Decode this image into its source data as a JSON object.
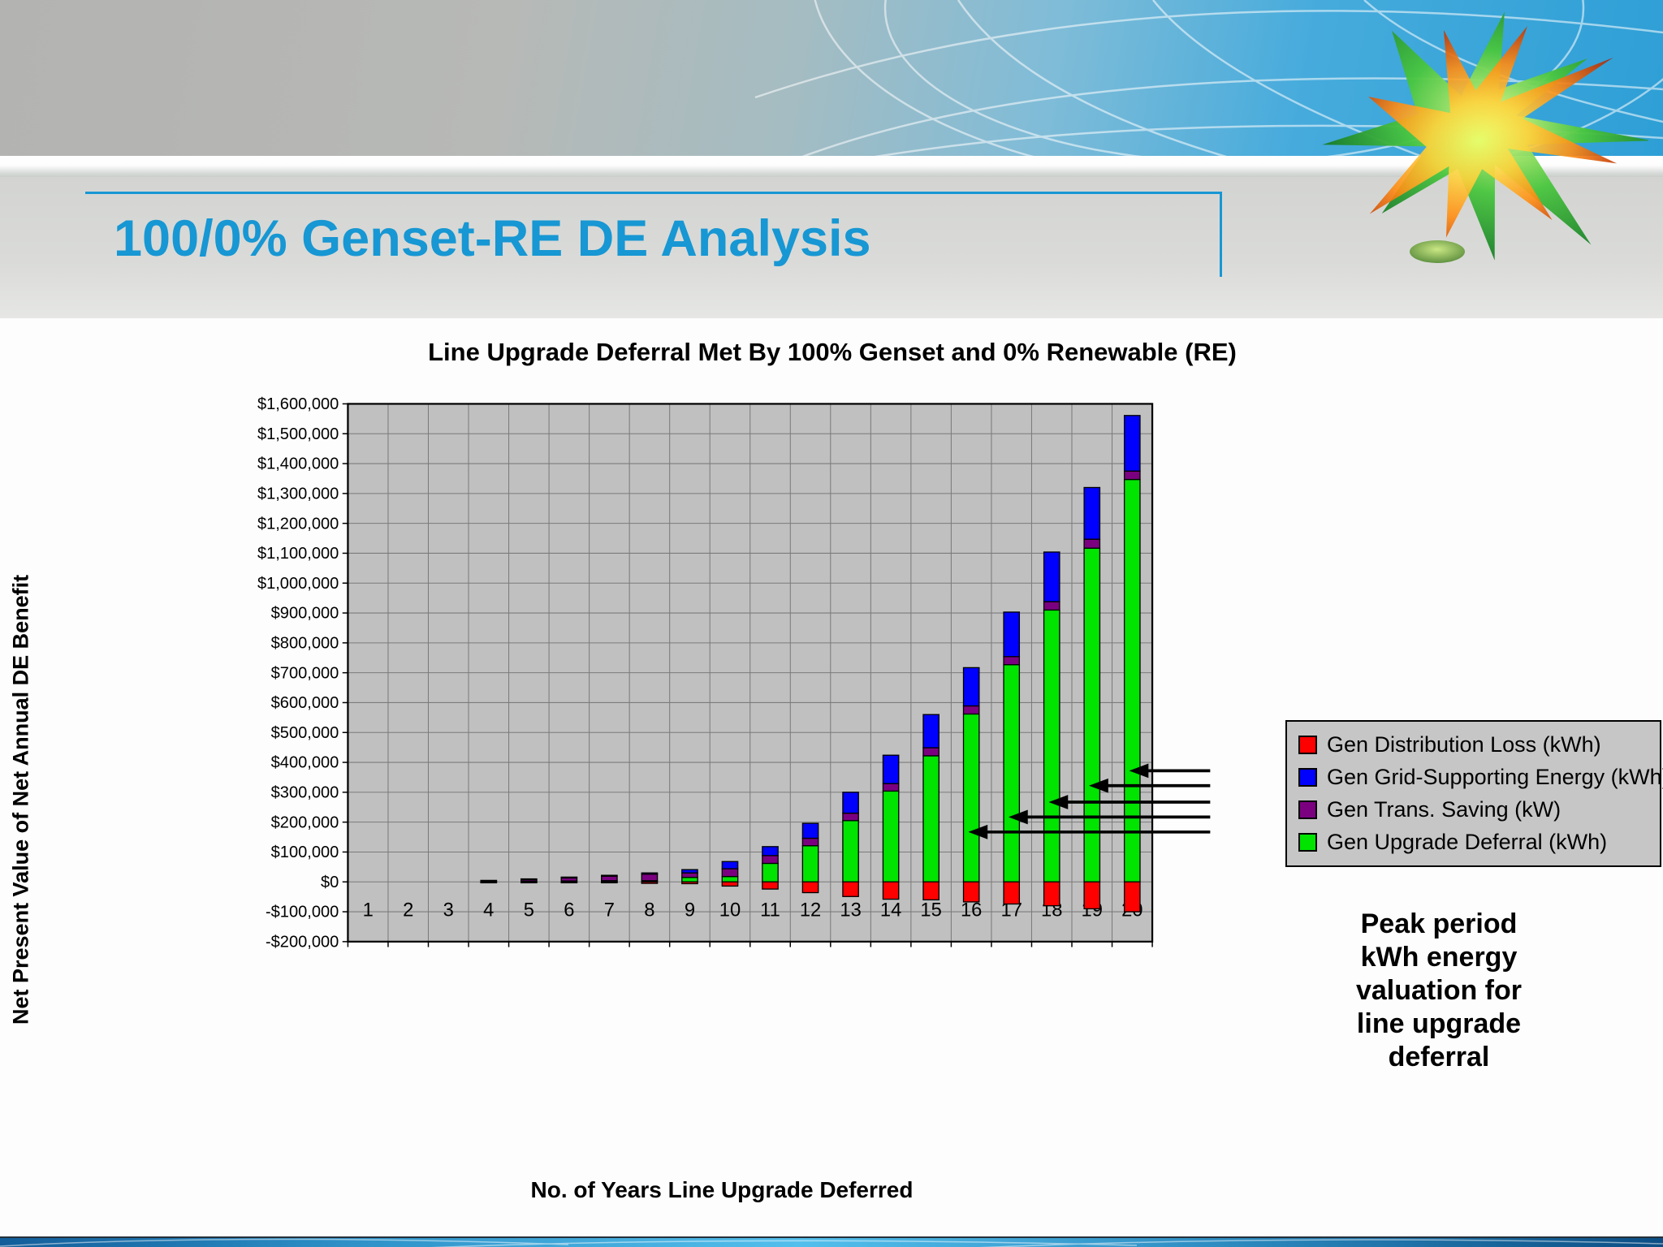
{
  "slide": {
    "title": "100/0% Genset-RE DE Analysis"
  },
  "chart": {
    "title": "Line Upgrade Deferral Met By 100% Genset and 0% Renewable (RE)",
    "x_axis_title": "No. of Years Line Upgrade Deferred",
    "y_axis_title": "Net Present Value of Net Annual DE Benefit"
  },
  "chart_data": {
    "type": "bar",
    "stacked": true,
    "title": "Line Upgrade Deferral Met By 100% Genset and 0% Renewable (RE)",
    "xlabel": "No. of Years Line Upgrade Deferred",
    "ylabel": "Net Present Value of Net Annual DE Benefit",
    "categories": [
      1,
      2,
      3,
      4,
      5,
      6,
      7,
      8,
      9,
      10,
      11,
      12,
      13,
      14,
      15,
      16,
      17,
      18,
      19,
      20
    ],
    "series": [
      {
        "name": "Gen Distribution Loss (kWh)",
        "color": "#FF0000",
        "values": [
          0,
          0,
          0,
          -2000,
          -2000,
          -3000,
          -3000,
          -5000,
          -6000,
          -14000,
          -24000,
          -36000,
          -49000,
          -58000,
          -60000,
          -67000,
          -74000,
          -80000,
          -90000,
          -100000
        ]
      },
      {
        "name": "Gen Grid-Supporting Energy (kWh)",
        "color": "#0000FF",
        "values": [
          0,
          0,
          0,
          1000,
          1000,
          2000,
          3000,
          4000,
          11000,
          24000,
          30000,
          50000,
          70000,
          95000,
          111000,
          128000,
          149000,
          166000,
          173000,
          186000
        ]
      },
      {
        "name": "Gen Trans. Saving (kW)",
        "color": "#7B0080",
        "values": [
          0,
          0,
          0,
          3000,
          7000,
          11000,
          15000,
          22000,
          15000,
          26000,
          26000,
          25000,
          25000,
          25000,
          27000,
          27000,
          27000,
          28000,
          30000,
          28000
        ]
      },
      {
        "name": "Gen Upgrade Deferral (kWh)",
        "color": "#00E400",
        "values": [
          0,
          0,
          0,
          1000,
          2000,
          3000,
          4000,
          4000,
          15000,
          18000,
          62000,
          121000,
          205000,
          304000,
          422000,
          562000,
          727000,
          910000,
          1117000,
          1347000
        ]
      }
    ],
    "ylim": [
      -200000,
      1600000
    ],
    "y_tick_step": 100000,
    "y_ticks": [
      "$1,600,000",
      "$1,500,000",
      "$1,400,000",
      "$1,300,000",
      "$1,200,000",
      "$1,100,000",
      "$1,000,000",
      "$900,000",
      "$800,000",
      "$700,000",
      "$600,000",
      "$500,000",
      "$400,000",
      "$300,000",
      "$200,000",
      "$100,000",
      "$0",
      "-$100,000",
      "-$200,000"
    ],
    "grid": true,
    "plot_bg": "#C0C0C0",
    "legend_position": "right"
  },
  "annotation": {
    "lines": [
      "Peak period",
      "kWh energy",
      "valuation for",
      "line upgrade",
      "deferral"
    ],
    "arrows": [
      {
        "year": 20,
        "value": 372000
      },
      {
        "year": 19,
        "value": 322000
      },
      {
        "year": 18,
        "value": 267000
      },
      {
        "year": 17,
        "value": 217000
      },
      {
        "year": 16,
        "value": 167000
      }
    ]
  }
}
